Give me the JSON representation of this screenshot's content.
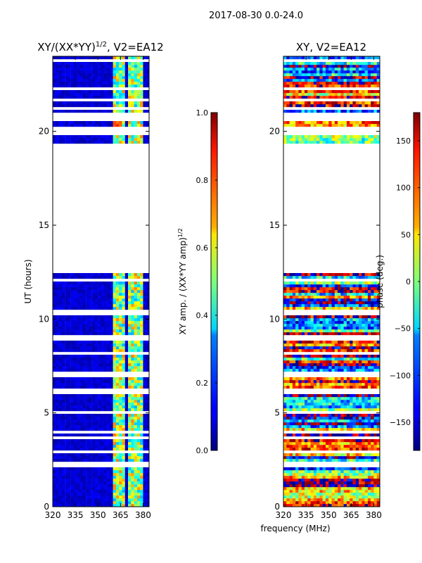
{
  "suptitle": "2017-08-30 0.0-24.0",
  "chart_data": [
    {
      "type": "heatmap",
      "title": "XY/(XX*YY)^1/2, V2=EA12",
      "title_main": "XY/(XX*YY)",
      "title_sup": "1/2",
      "title_rest": ", V2=EA12",
      "xlabel": "frequency (MHz)",
      "ylabel": "UT (hours)",
      "xlim": [
        320,
        384
      ],
      "ylim": [
        0,
        24
      ],
      "xticks": [
        "320",
        "335",
        "350",
        "365",
        "380"
      ],
      "xtick_values": [
        320,
        335,
        350,
        365,
        380
      ],
      "yticks": [
        "0",
        "5",
        "10",
        "15",
        "20"
      ],
      "ytick_values": [
        0,
        5,
        10,
        15,
        20
      ],
      "data_gap_hours": [
        19.3,
        12.5
      ],
      "bright_channels_mhz": [
        [
          361,
          364
        ],
        [
          365,
          368
        ],
        [
          370,
          373
        ],
        [
          375,
          379
        ]
      ],
      "colorbar": {
        "label": "XY amp. / (XX*YY amp)",
        "label_sup": "1/2",
        "range": [
          0.0,
          1.0
        ],
        "ticks": [
          "0.0",
          "0.2",
          "0.4",
          "0.6",
          "0.8",
          "1.0"
        ],
        "tick_values": [
          0.0,
          0.2,
          0.4,
          0.6,
          0.8,
          1.0
        ],
        "colormap": "jet"
      }
    },
    {
      "type": "heatmap",
      "title": "XY, V2=EA12",
      "xlabel": "frequency (MHz)",
      "ylabel": "",
      "xlim": [
        320,
        384
      ],
      "ylim": [
        0,
        24
      ],
      "xticks": [
        "320",
        "335",
        "350",
        "365",
        "380"
      ],
      "xtick_values": [
        320,
        335,
        350,
        365,
        380
      ],
      "yticks": [
        "0",
        "5",
        "10",
        "15",
        "20"
      ],
      "ytick_values": [
        0,
        5,
        10,
        15,
        20
      ],
      "data_gap_hours": [
        19.3,
        12.5
      ],
      "colorbar": {
        "label": "phase (deg.)",
        "range": [
          -180,
          180
        ],
        "ticks": [
          "−150",
          "−100",
          "−50",
          "0",
          "50",
          "100",
          "150"
        ],
        "tick_values": [
          -150,
          -100,
          -50,
          0,
          50,
          100,
          150
        ],
        "colormap": "jet"
      }
    }
  ],
  "shared_xlabel": "frequency (MHz)",
  "colors": {
    "background": "#ffffff",
    "axis": "#000000",
    "low": "#00008f",
    "high": "#7f0000"
  }
}
